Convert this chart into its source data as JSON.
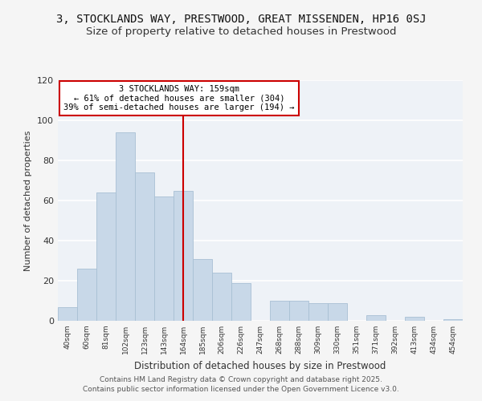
{
  "title": "3, STOCKLANDS WAY, PRESTWOOD, GREAT MISSENDEN, HP16 0SJ",
  "subtitle": "Size of property relative to detached houses in Prestwood",
  "xlabel": "Distribution of detached houses by size in Prestwood",
  "ylabel": "Number of detached properties",
  "bar_color": "#c8d8e8",
  "bar_edge_color": "#a8c0d4",
  "categories": [
    "40sqm",
    "60sqm",
    "81sqm",
    "102sqm",
    "123sqm",
    "143sqm",
    "164sqm",
    "185sqm",
    "206sqm",
    "226sqm",
    "247sqm",
    "268sqm",
    "288sqm",
    "309sqm",
    "330sqm",
    "351sqm",
    "371sqm",
    "392sqm",
    "413sqm",
    "434sqm",
    "454sqm"
  ],
  "values": [
    7,
    26,
    64,
    94,
    74,
    62,
    65,
    31,
    24,
    19,
    0,
    10,
    10,
    9,
    9,
    0,
    3,
    0,
    2,
    0,
    1
  ],
  "ylim": [
    0,
    120
  ],
  "yticks": [
    0,
    20,
    40,
    60,
    80,
    100,
    120
  ],
  "vline_label": "3 STOCKLANDS WAY: 159sqm",
  "annotation_line1": "← 61% of detached houses are smaller (304)",
  "annotation_line2": "39% of semi-detached houses are larger (194) →",
  "annotation_box_color": "#ffffff",
  "annotation_box_edge": "#cc0000",
  "vline_color": "#cc0000",
  "footer1": "Contains HM Land Registry data © Crown copyright and database right 2025.",
  "footer2": "Contains public sector information licensed under the Open Government Licence v3.0.",
  "background_color": "#f5f5f5",
  "plot_background": "#eef2f7",
  "grid_color": "#ffffff",
  "title_fontsize": 10,
  "subtitle_fontsize": 9.5,
  "footer_fontsize": 6.5
}
